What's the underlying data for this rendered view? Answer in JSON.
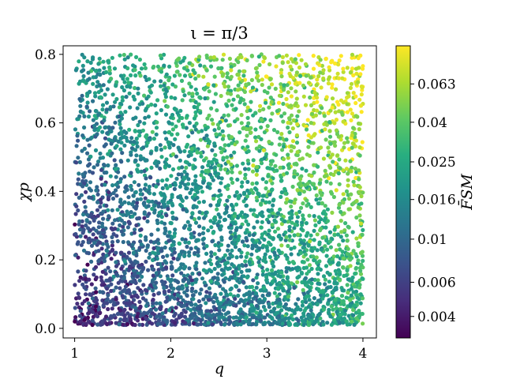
{
  "chart_data": {
    "type": "scatter",
    "title": "ι = π/3",
    "xlabel": "q",
    "ylabel": "χp",
    "xlim": [
      0.88,
      4.14
    ],
    "ylim": [
      -0.028,
      0.825
    ],
    "xticks": [
      1,
      2,
      3,
      4
    ],
    "yticks": [
      0.0,
      0.2,
      0.4,
      0.6,
      0.8
    ],
    "xtick_labels": [
      "1",
      "2",
      "3",
      "4"
    ],
    "ytick_labels": [
      "0.0",
      "0.2",
      "0.4",
      "0.6",
      "0.8"
    ],
    "x_range": [
      1.0,
      4.0
    ],
    "y_range": [
      0.01,
      0.8
    ],
    "n_points": 4000,
    "colorbar": {
      "label": "F̄SM",
      "scale": "log",
      "range": [
        0.0031,
        0.099
      ],
      "ticks": [
        0.004,
        0.006,
        0.01,
        0.016,
        0.025,
        0.04,
        0.063
      ],
      "tick_labels": [
        "0.004",
        "0.006",
        "0.01",
        "0.016",
        "0.025",
        "0.04",
        "0.063"
      ],
      "colormap": "viridis"
    },
    "grid": false,
    "legend": "none"
  }
}
